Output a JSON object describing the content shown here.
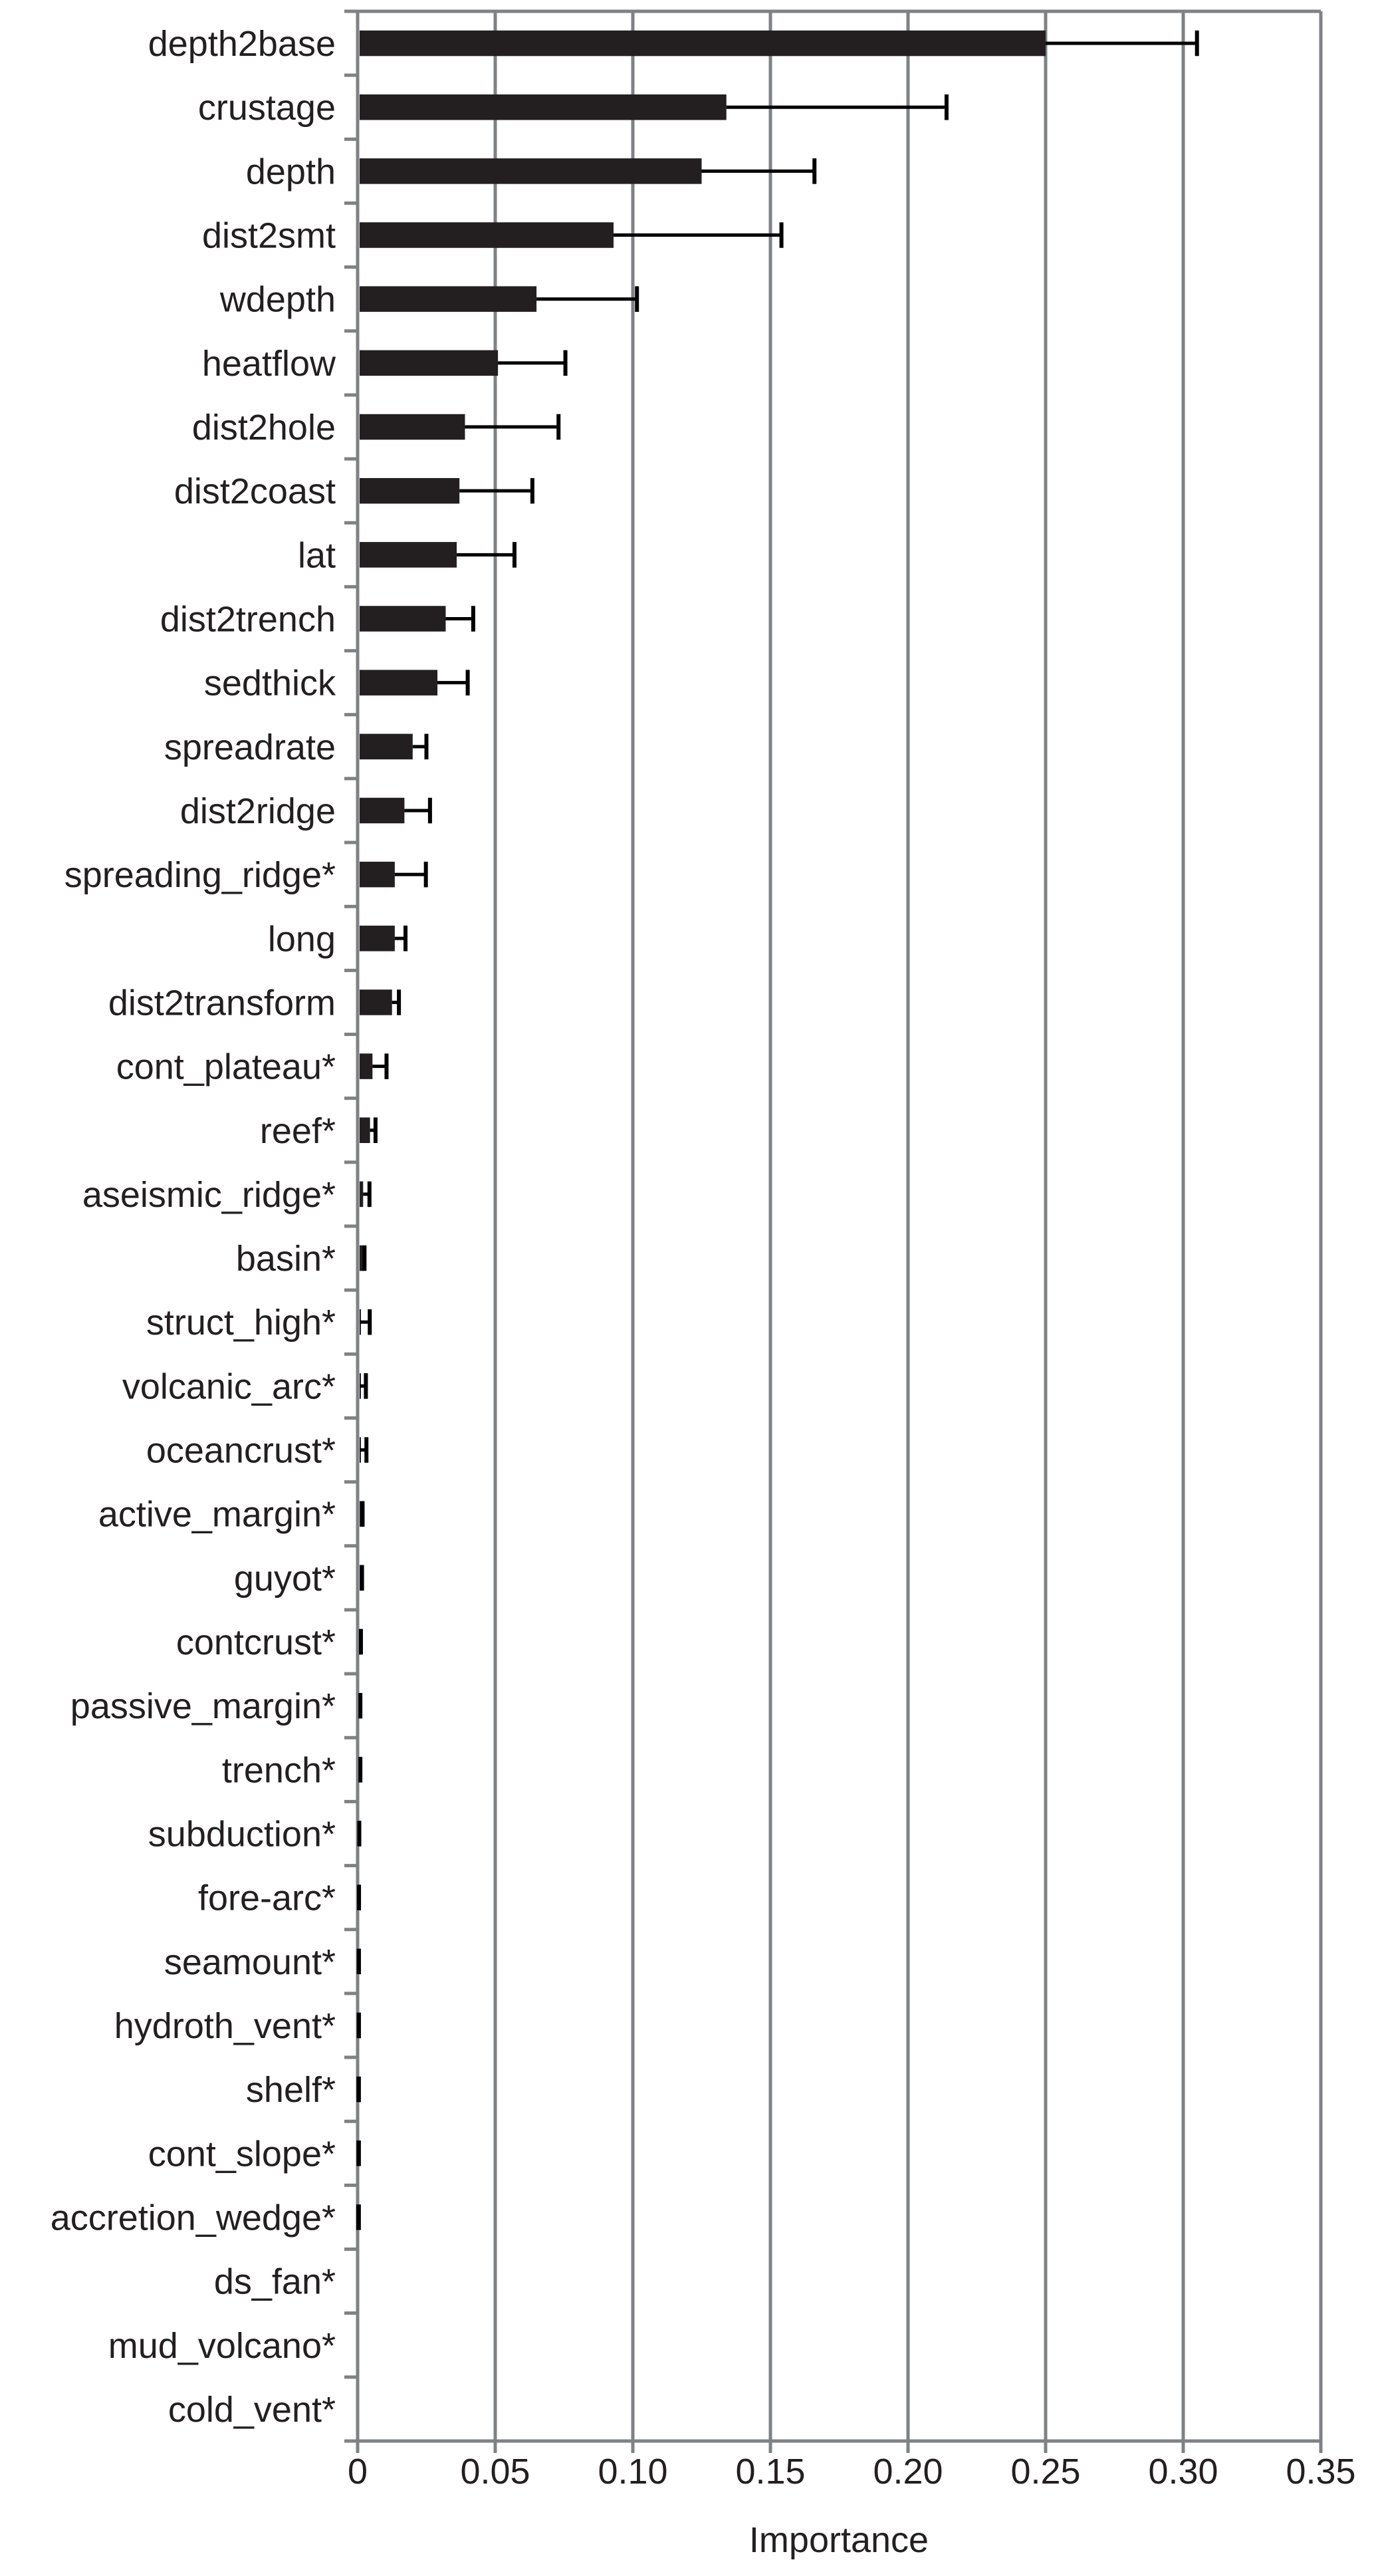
{
  "chart_data": {
    "type": "bar",
    "orientation": "horizontal",
    "title": "",
    "xlabel": "Importance",
    "ylabel": "",
    "xlim": [
      0,
      0.35
    ],
    "xticks": [
      "0",
      "0.05",
      "0.10",
      "0.15",
      "0.20",
      "0.25",
      "0.30",
      "0.35"
    ],
    "grid": "vertical",
    "bar_color": "#231f20",
    "grid_color": "#7f8285",
    "categories": [
      "depth2base",
      "crustage",
      "depth",
      "dist2smt",
      "wdepth",
      "heatflow",
      "dist2hole",
      "dist2coast",
      "lat",
      "dist2trench",
      "sedthick",
      "spreadrate",
      "dist2ridge",
      "spreading_ridge*",
      "long",
      "dist2transform",
      "cont_plateau*",
      "reef*",
      "aseismic_ridge*",
      "basin*",
      "struct_high*",
      "volcanic_arc*",
      "oceancrust*",
      "active_margin*",
      "guyot*",
      "contcrust*",
      "passive_margin*",
      "trench*",
      "subduction*",
      "fore-arc*",
      "seamount*",
      "hydroth_vent*",
      "shelf*",
      "cont_slope*",
      "accretion_wedge*",
      "ds_fan*",
      "mud_volcano*",
      "cold_vent*"
    ],
    "values": [
      0.25,
      0.134,
      0.125,
      0.093,
      0.065,
      0.051,
      0.039,
      0.037,
      0.036,
      0.032,
      0.029,
      0.02,
      0.017,
      0.0135,
      0.0135,
      0.0125,
      0.0054,
      0.0045,
      0.002,
      0.002,
      0.0008,
      0.0008,
      0.0008,
      0.0016,
      0.0014,
      0.001,
      0.0008,
      0.0008,
      0.0005,
      0.0004,
      0.0003,
      0.0003,
      0.0002,
      0.0002,
      0.0001,
      0,
      0,
      0
    ],
    "error_upper": [
      0.305,
      0.214,
      0.166,
      0.154,
      0.1015,
      0.0755,
      0.073,
      0.0635,
      0.057,
      0.042,
      0.04,
      0.025,
      0.0263,
      0.0248,
      0.0174,
      0.015,
      0.0105,
      0.0065,
      0.0043,
      0.0025,
      0.0044,
      0.003,
      0.0032,
      0.0018,
      0.0016,
      0.0012,
      0.001,
      0.001,
      0.0006,
      0.0005,
      0.0004,
      0.0004,
      0.0003,
      0.0003,
      0.0002,
      0,
      0,
      0
    ]
  }
}
